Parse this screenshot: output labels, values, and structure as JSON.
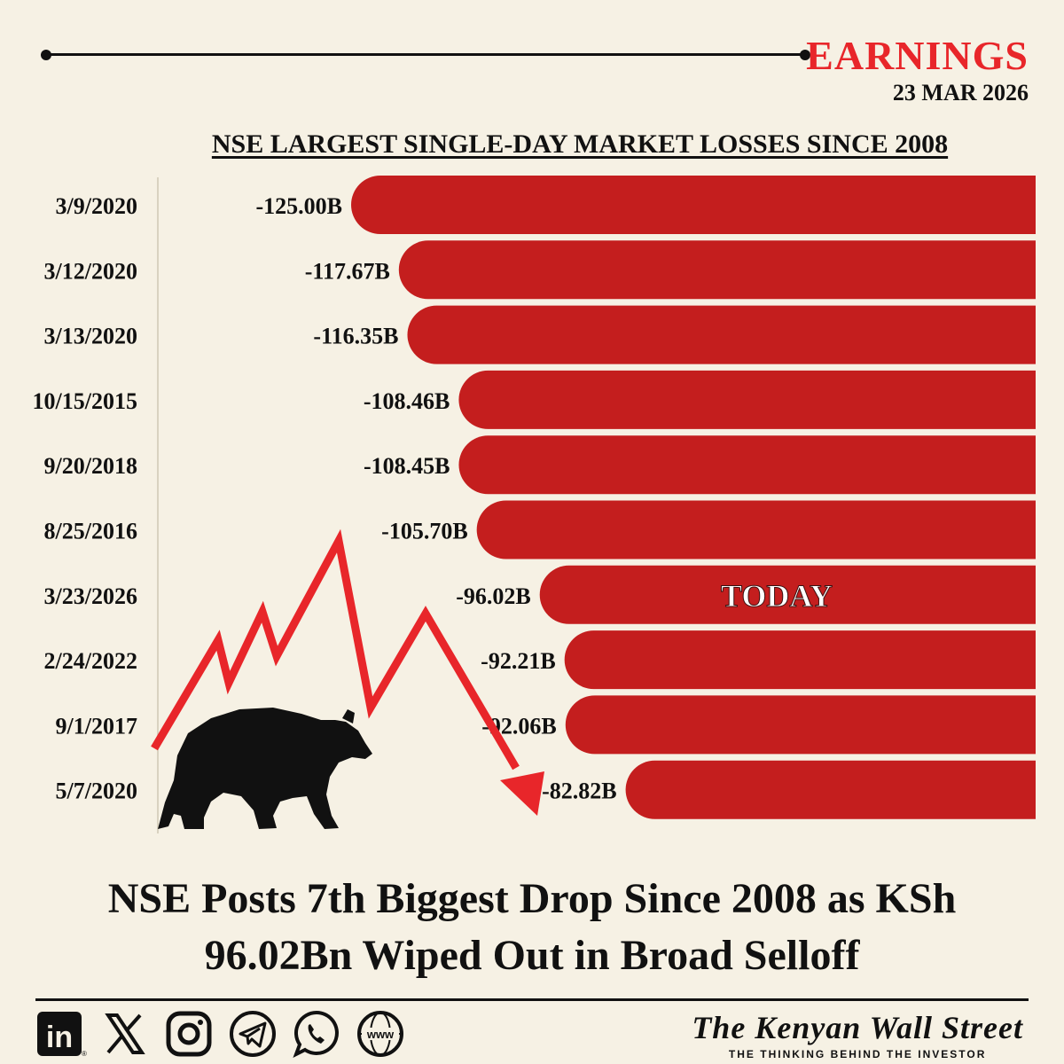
{
  "header": {
    "section": "EARNINGS",
    "date": "23 MAR 2026",
    "accent_color": "#e8262a"
  },
  "chart_data": {
    "type": "bar",
    "orientation": "horizontal",
    "title": "NSE LARGEST SINGLE-DAY MARKET LOSSES SINCE 2008",
    "categories": [
      "3/9/2020",
      "3/12/2020",
      "3/13/2020",
      "10/15/2015",
      "9/20/2018",
      "8/25/2016",
      "3/23/2026",
      "2/24/2022",
      "9/1/2017",
      "5/7/2020"
    ],
    "values": [
      -125.0,
      -117.67,
      -116.35,
      -108.46,
      -108.45,
      -105.7,
      -96.02,
      -92.21,
      -92.06,
      -82.82
    ],
    "value_labels": [
      "-125.00B",
      "-117.67B",
      "-116.35B",
      "-108.46B",
      "-108.45B",
      "-105.70B",
      "-96.02B",
      "-92.21B",
      "-92.06B",
      "-82.82B"
    ],
    "unit": "B",
    "bar_color": "#c41e1e",
    "highlight": {
      "category": "3/23/2026",
      "text": "TODAY"
    }
  },
  "headline": {
    "line1": "NSE Posts 7th Biggest Drop Since 2008 as KSh",
    "line2": "96.02Bn Wiped Out in Broad Selloff"
  },
  "footer": {
    "social_icons": [
      "linkedin-icon",
      "x-icon",
      "instagram-icon",
      "telegram-icon",
      "whatsapp-icon",
      "website-icon"
    ],
    "linkedin_text": "in",
    "website_text": "www",
    "brand_name": "The Kenyan Wall Street",
    "brand_tagline": "THE THINKING BEHIND THE INVESTOR"
  }
}
